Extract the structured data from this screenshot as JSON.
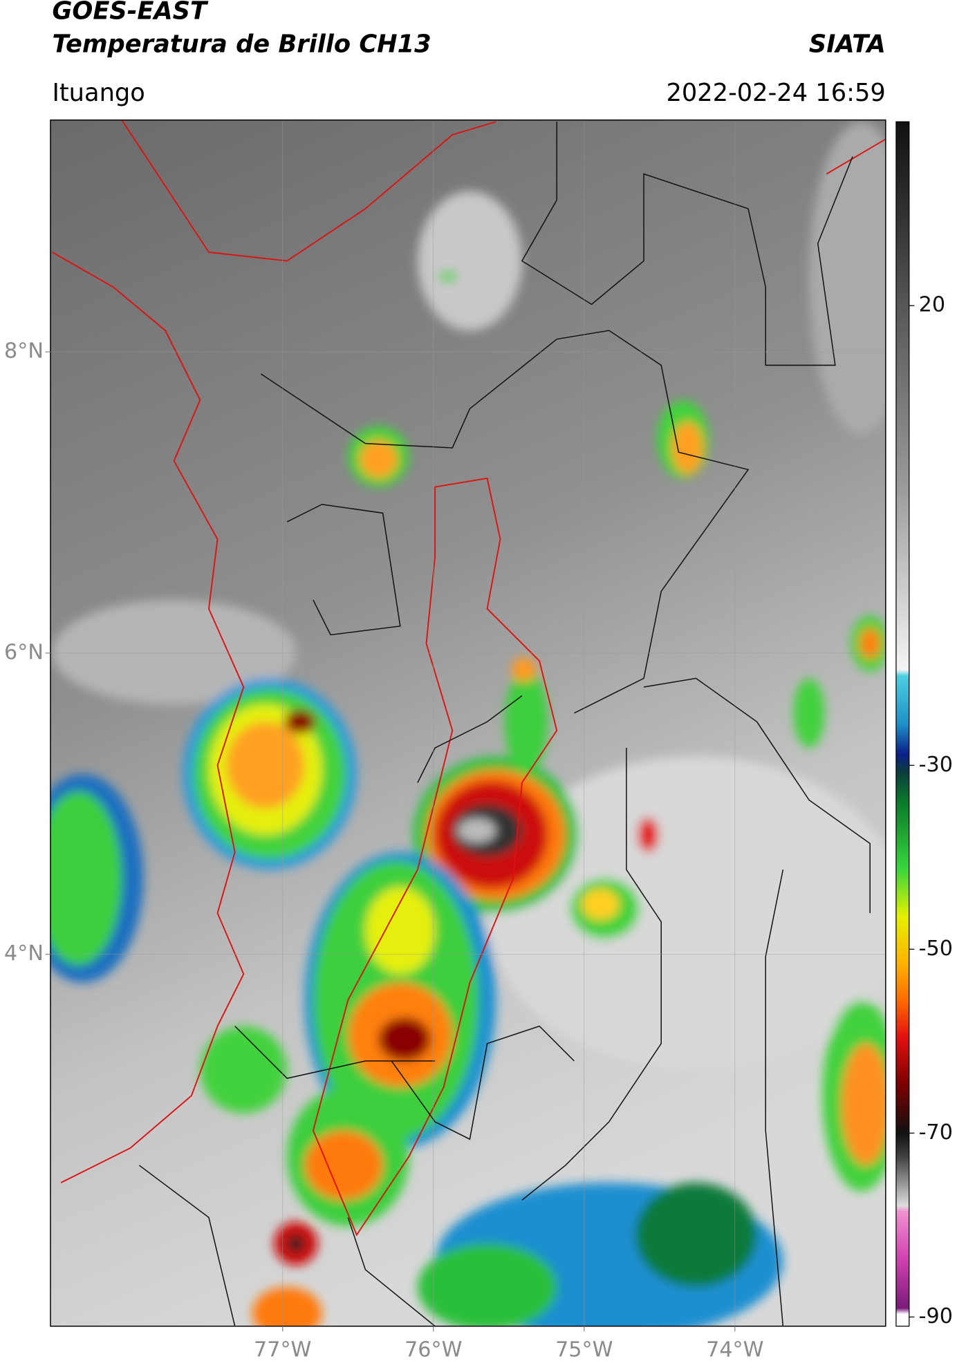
{
  "header": {
    "title": "GOES-EAST",
    "subtitle": "Temperatura de Brillo CH13",
    "source": "SIATA",
    "location": "Ituango",
    "datetime": "2022-02-24 16:59"
  },
  "map": {
    "lonlim": [
      -78.54,
      -73.0
    ],
    "latlim": [
      1.53,
      9.54
    ],
    "xticks": [
      {
        "value": -77,
        "label": "77°W"
      },
      {
        "value": -76,
        "label": "76°W"
      },
      {
        "value": -75,
        "label": "75°W"
      },
      {
        "value": -74,
        "label": "74°W"
      }
    ],
    "yticks": [
      {
        "value": 8,
        "label": "8°N"
      },
      {
        "value": 6,
        "label": "6°N"
      },
      {
        "value": 4,
        "label": "4°N"
      }
    ]
  },
  "colorbar": {
    "lim": [
      -91,
      40
    ],
    "ticks": [
      20,
      -30,
      -50,
      -70,
      -90
    ]
  }
}
